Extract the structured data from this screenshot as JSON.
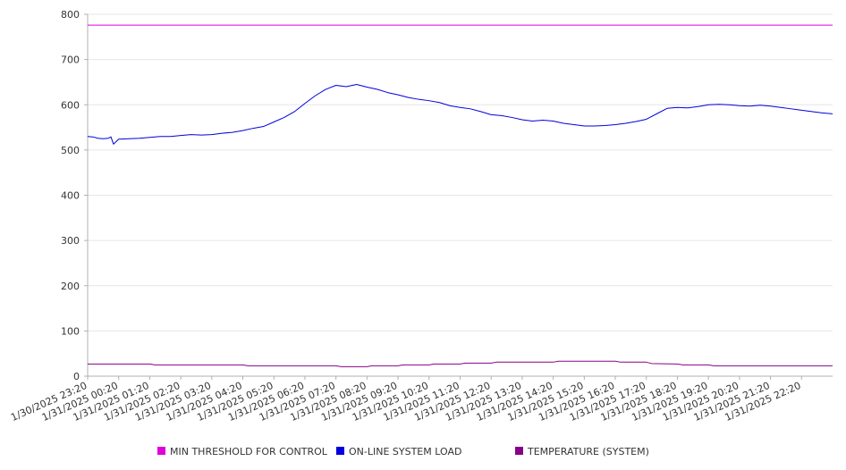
{
  "chart_data": {
    "type": "line",
    "title": "",
    "xlabel": "",
    "ylabel": "",
    "ylim": [
      0,
      800
    ],
    "yticks": [
      0,
      100,
      200,
      300,
      400,
      500,
      600,
      700,
      800
    ],
    "grid": true,
    "legend_position": "bottom",
    "x_time_range": [
      "1/30/2025 23:20",
      "1/31/2025 23:20"
    ],
    "x_tick_labels": [
      "1/30/2025 23:20",
      "1/31/2025 00:20",
      "1/31/2025 01:20",
      "1/31/2025 02:20",
      "1/31/2025 03:20",
      "1/31/2025 04:20",
      "1/31/2025 05:20",
      "1/31/2025 06:20",
      "1/31/2025 07:20",
      "1/31/2025 08:20",
      "1/31/2025 09:20",
      "1/31/2025 10:20",
      "1/31/2025 11:20",
      "1/31/2025 12:20",
      "1/31/2025 13:20",
      "1/31/2025 14:20",
      "1/31/2025 15:20",
      "1/31/2025 16:20",
      "1/31/2025 17:20",
      "1/31/2025 18:20",
      "1/31/2025 19:20",
      "1/31/2025 20:20",
      "1/31/2025 21:20",
      "1/31/2025 22:20"
    ],
    "series": [
      {
        "name": "MIN THRESHOLD FOR CONTROL",
        "color": "#dd00dd",
        "points": [
          [
            "1/30/2025 23:20",
            776
          ],
          [
            "1/31/2025 23:20",
            776
          ]
        ]
      },
      {
        "name": "ON-LINE SYSTEM LOAD",
        "color": "#0000dd",
        "points": [
          [
            "1/30/2025 23:20",
            530
          ],
          [
            "1/30/2025 23:30",
            529
          ],
          [
            "1/30/2025 23:40",
            526
          ],
          [
            "1/30/2025 23:50",
            525
          ],
          [
            "1/31/2025 00:00",
            526
          ],
          [
            "1/31/2025 00:05",
            529
          ],
          [
            "1/31/2025 00:10",
            513
          ],
          [
            "1/31/2025 00:20",
            524
          ],
          [
            "1/31/2025 00:40",
            525
          ],
          [
            "1/31/2025 01:00",
            526
          ],
          [
            "1/31/2025 01:20",
            528
          ],
          [
            "1/31/2025 01:40",
            530
          ],
          [
            "1/31/2025 02:00",
            530
          ],
          [
            "1/31/2025 02:20",
            532
          ],
          [
            "1/31/2025 02:40",
            534
          ],
          [
            "1/31/2025 03:00",
            533
          ],
          [
            "1/31/2025 03:20",
            534
          ],
          [
            "1/31/2025 03:40",
            537
          ],
          [
            "1/31/2025 04:00",
            539
          ],
          [
            "1/31/2025 04:20",
            543
          ],
          [
            "1/31/2025 04:40",
            548
          ],
          [
            "1/31/2025 05:00",
            552
          ],
          [
            "1/31/2025 05:20",
            562
          ],
          [
            "1/31/2025 05:40",
            572
          ],
          [
            "1/31/2025 06:00",
            585
          ],
          [
            "1/31/2025 06:20",
            603
          ],
          [
            "1/31/2025 06:40",
            620
          ],
          [
            "1/31/2025 07:00",
            634
          ],
          [
            "1/31/2025 07:20",
            643
          ],
          [
            "1/31/2025 07:40",
            640
          ],
          [
            "1/31/2025 08:00",
            645
          ],
          [
            "1/31/2025 08:20",
            639
          ],
          [
            "1/31/2025 08:40",
            634
          ],
          [
            "1/31/2025 09:00",
            627
          ],
          [
            "1/31/2025 09:20",
            622
          ],
          [
            "1/31/2025 09:40",
            616
          ],
          [
            "1/31/2025 10:00",
            612
          ],
          [
            "1/31/2025 10:20",
            609
          ],
          [
            "1/31/2025 10:40",
            605
          ],
          [
            "1/31/2025 11:00",
            598
          ],
          [
            "1/31/2025 11:20",
            594
          ],
          [
            "1/31/2025 11:40",
            591
          ],
          [
            "1/31/2025 12:00",
            585
          ],
          [
            "1/31/2025 12:20",
            578
          ],
          [
            "1/31/2025 12:40",
            576
          ],
          [
            "1/31/2025 13:00",
            572
          ],
          [
            "1/31/2025 13:20",
            567
          ],
          [
            "1/31/2025 13:40",
            564
          ],
          [
            "1/31/2025 14:00",
            566
          ],
          [
            "1/31/2025 14:20",
            564
          ],
          [
            "1/31/2025 14:40",
            559
          ],
          [
            "1/31/2025 15:00",
            556
          ],
          [
            "1/31/2025 15:20",
            553
          ],
          [
            "1/31/2025 15:40",
            553
          ],
          [
            "1/31/2025 16:00",
            554
          ],
          [
            "1/31/2025 16:20",
            556
          ],
          [
            "1/31/2025 16:40",
            559
          ],
          [
            "1/31/2025 17:00",
            563
          ],
          [
            "1/31/2025 17:20",
            568
          ],
          [
            "1/31/2025 17:40",
            580
          ],
          [
            "1/31/2025 18:00",
            592
          ],
          [
            "1/31/2025 18:20",
            594
          ],
          [
            "1/31/2025 18:40",
            593
          ],
          [
            "1/31/2025 19:00",
            596
          ],
          [
            "1/31/2025 19:20",
            600
          ],
          [
            "1/31/2025 19:40",
            601
          ],
          [
            "1/31/2025 20:00",
            600
          ],
          [
            "1/31/2025 20:20",
            598
          ],
          [
            "1/31/2025 20:40",
            597
          ],
          [
            "1/31/2025 21:00",
            599
          ],
          [
            "1/31/2025 21:20",
            597
          ],
          [
            "1/31/2025 21:40",
            594
          ],
          [
            "1/31/2025 22:00",
            591
          ],
          [
            "1/31/2025 22:20",
            588
          ],
          [
            "1/31/2025 22:40",
            585
          ],
          [
            "1/31/2025 23:00",
            582
          ],
          [
            "1/31/2025 23:20",
            580
          ]
        ]
      },
      {
        "name": "TEMPERATURE (SYSTEM)",
        "color": "#880088",
        "points": [
          [
            "1/30/2025 23:20",
            27
          ],
          [
            "1/31/2025 01:20",
            27
          ],
          [
            "1/31/2025 01:30",
            25
          ],
          [
            "1/31/2025 04:20",
            25
          ],
          [
            "1/31/2025 04:30",
            23
          ],
          [
            "1/31/2025 07:20",
            23
          ],
          [
            "1/31/2025 07:30",
            21
          ],
          [
            "1/31/2025 08:20",
            21
          ],
          [
            "1/31/2025 08:30",
            23
          ],
          [
            "1/31/2025 09:20",
            23
          ],
          [
            "1/31/2025 09:30",
            25
          ],
          [
            "1/31/2025 10:20",
            25
          ],
          [
            "1/31/2025 10:30",
            27
          ],
          [
            "1/31/2025 11:20",
            27
          ],
          [
            "1/31/2025 11:30",
            29
          ],
          [
            "1/31/2025 12:20",
            29
          ],
          [
            "1/31/2025 12:30",
            31
          ],
          [
            "1/31/2025 14:20",
            31
          ],
          [
            "1/31/2025 14:30",
            33
          ],
          [
            "1/31/2025 16:20",
            33
          ],
          [
            "1/31/2025 16:30",
            31
          ],
          [
            "1/31/2025 17:20",
            31
          ],
          [
            "1/31/2025 17:30",
            28
          ],
          [
            "1/31/2025 18:20",
            27
          ],
          [
            "1/31/2025 18:30",
            25
          ],
          [
            "1/31/2025 19:20",
            25
          ],
          [
            "1/31/2025 19:30",
            23
          ],
          [
            "1/31/2025 23:20",
            23
          ]
        ]
      }
    ]
  }
}
